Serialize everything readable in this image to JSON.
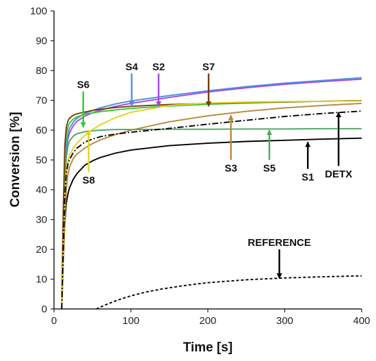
{
  "chart_data": {
    "type": "line",
    "title": "",
    "xlabel": "Time [s]",
    "ylabel": "Conversion [%]",
    "xlim": [
      0,
      400
    ],
    "ylim": [
      0,
      100
    ],
    "xticks": [
      0,
      100,
      200,
      300,
      400
    ],
    "yticks": [
      0,
      10,
      20,
      30,
      40,
      50,
      60,
      70,
      80,
      90,
      100
    ],
    "grid": false,
    "legend": "none",
    "series": [
      {
        "name": "S1",
        "color": "#000000",
        "dash": "solid",
        "x": [
          10,
          12,
          14,
          16,
          18,
          20,
          25,
          30,
          40,
          50,
          60,
          80,
          100,
          150,
          200,
          250,
          300,
          350,
          400
        ],
        "y": [
          0,
          16,
          29,
          35.5,
          38.5,
          40.5,
          43.5,
          45.5,
          48.2,
          49.7,
          50.8,
          52.3,
          53.3,
          54.8,
          55.6,
          56.2,
          56.6,
          57,
          57.3
        ]
      },
      {
        "name": "S2",
        "color": "#a349e0",
        "dash": "solid",
        "x": [
          10,
          12,
          14,
          16,
          18,
          20,
          25,
          30,
          40,
          50,
          60,
          80,
          100,
          150,
          200,
          250,
          300,
          350,
          400
        ],
        "y": [
          0,
          25,
          45,
          53.5,
          57,
          59,
          61.5,
          63,
          64.7,
          65.8,
          66.7,
          68,
          69,
          71,
          72.8,
          74.2,
          75.4,
          76.3,
          77.1
        ]
      },
      {
        "name": "S3",
        "color": "#b8863c",
        "dash": "solid",
        "x": [
          10,
          12,
          14,
          16,
          18,
          20,
          25,
          30,
          40,
          50,
          60,
          80,
          100,
          150,
          200,
          250,
          300,
          350,
          400
        ],
        "y": [
          0,
          15,
          30,
          40,
          45,
          47.5,
          50.5,
          52,
          54,
          55.5,
          56.7,
          58.5,
          60,
          62.8,
          64.8,
          66.3,
          67.5,
          68.3,
          69
        ]
      },
      {
        "name": "S4",
        "color": "#4f8de0",
        "dash": "solid",
        "x": [
          10,
          12,
          14,
          16,
          18,
          20,
          25,
          30,
          40,
          50,
          60,
          80,
          100,
          150,
          200,
          250,
          300,
          350,
          400
        ],
        "y": [
          0,
          26,
          47,
          55,
          58.5,
          60.5,
          62.7,
          64,
          65.6,
          66.6,
          67.5,
          68.8,
          69.8,
          71.6,
          73.2,
          74.6,
          75.8,
          76.7,
          77.6
        ]
      },
      {
        "name": "S5",
        "color": "#48a860",
        "dash": "solid",
        "x": [
          10,
          12,
          14,
          16,
          18,
          20,
          25,
          30,
          40,
          50,
          60,
          80,
          100,
          150,
          200,
          250,
          300,
          350,
          400
        ],
        "y": [
          0,
          22,
          42,
          51,
          54.5,
          56.3,
          58,
          58.8,
          59.5,
          59.8,
          60,
          60.2,
          60.2,
          60.3,
          60.3,
          60.4,
          60.4,
          60.5,
          60.5
        ]
      },
      {
        "name": "S6",
        "color": "#2ecc2e",
        "dash": "solid",
        "x": [
          10,
          12,
          14,
          16,
          18,
          20,
          25,
          30,
          40,
          50,
          60,
          80,
          100,
          150,
          200,
          250,
          300,
          350,
          400
        ],
        "y": [
          0,
          30,
          52,
          58.5,
          61,
          62.3,
          63.7,
          64.5,
          65.3,
          65.8,
          66.2,
          66.8,
          67.3,
          68.1,
          68.7,
          69.1,
          69.4,
          69.7,
          69.9
        ]
      },
      {
        "name": "S7",
        "color": "#7a3a10",
        "dash": "solid",
        "x": [
          10,
          12,
          14,
          16,
          18,
          20,
          25,
          30,
          40,
          50,
          60,
          80,
          100,
          150,
          200,
          250,
          300,
          350,
          400
        ],
        "y": [
          0,
          33,
          55,
          61,
          63,
          64,
          65,
          65.5,
          66.1,
          66.6,
          67,
          67.6,
          68,
          68.6,
          69,
          69.3,
          69.5,
          69.7,
          69.9
        ]
      },
      {
        "name": "S8",
        "color": "#e3d21c",
        "dash": "solid",
        "x": [
          10,
          12,
          14,
          16,
          18,
          20,
          25,
          30,
          40,
          50,
          60,
          80,
          100,
          150,
          200,
          250,
          300,
          350,
          400
        ],
        "y": [
          0,
          20,
          38,
          46,
          49.5,
          51.5,
          54,
          55.7,
          58.2,
          60.2,
          61.8,
          64.2,
          66,
          68.3,
          69.1,
          69.4,
          69.6,
          69.7,
          69.8
        ]
      },
      {
        "name": "DETX",
        "color": "#000000",
        "dash": "dashdot",
        "x": [
          10,
          12,
          14,
          16,
          18,
          20,
          25,
          30,
          40,
          50,
          60,
          80,
          100,
          150,
          200,
          250,
          300,
          350,
          400
        ],
        "y": [
          0,
          20,
          38,
          45.5,
          48.5,
          50,
          52.5,
          54,
          56,
          57,
          57.8,
          58.7,
          59.3,
          60.6,
          62,
          63.3,
          64.6,
          65.6,
          66.4
        ]
      },
      {
        "name": "REFERENCE",
        "color": "#000000",
        "dash": "dashed",
        "x": [
          55,
          60,
          70,
          80,
          90,
          100,
          120,
          140,
          160,
          180,
          200,
          250,
          300,
          350,
          400
        ],
        "y": [
          0,
          0.6,
          1.7,
          2.7,
          3.6,
          4.4,
          5.7,
          6.7,
          7.5,
          8.2,
          8.8,
          9.8,
          10.4,
          10.8,
          11.1
        ]
      }
    ],
    "annotations": [
      {
        "label": "S6",
        "color": "#2ecc2e",
        "arrow_from": [
          38,
          73
        ],
        "arrow_to": [
          38,
          61
        ]
      },
      {
        "label": "S4",
        "color": "#4f8de0",
        "arrow_from": [
          101,
          79
        ],
        "arrow_to": [
          101,
          68
        ]
      },
      {
        "label": "S2",
        "color": "#a349e0",
        "arrow_from": [
          136,
          79
        ],
        "arrow_to": [
          136,
          68
        ]
      },
      {
        "label": "S7",
        "color": "#7a3a10",
        "arrow_from": [
          201,
          79
        ],
        "arrow_to": [
          201,
          68
        ]
      },
      {
        "label": "S8",
        "color": "#e3d21c",
        "arrow_from": [
          45,
          46
        ],
        "arrow_to": [
          45,
          60
        ]
      },
      {
        "label": "S3",
        "color": "#b8863c",
        "arrow_from": [
          230,
          50
        ],
        "arrow_to": [
          230,
          65
        ]
      },
      {
        "label": "S5",
        "color": "#48a860",
        "arrow_from": [
          280,
          50
        ],
        "arrow_to": [
          280,
          60
        ]
      },
      {
        "label": "S1",
        "color": "#000000",
        "arrow_from": [
          330,
          47
        ],
        "arrow_to": [
          330,
          56
        ]
      },
      {
        "label": "DETX",
        "color": "#000000",
        "arrow_from": [
          370,
          48
        ],
        "arrow_to": [
          370,
          66
        ]
      },
      {
        "label": "REFERENCE",
        "color": "#000000",
        "arrow_from": [
          293,
          20
        ],
        "arrow_to": [
          293,
          10.3
        ]
      }
    ]
  }
}
